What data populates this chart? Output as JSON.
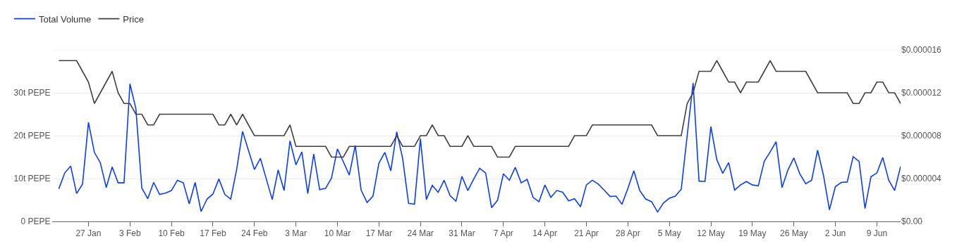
{
  "chart_data": {
    "type": "line",
    "x": [
      "--01-22",
      "--01-23",
      "--01-24",
      "--01-25",
      "--01-26",
      "--01-27",
      "--01-28",
      "--01-29",
      "--01-30",
      "--01-31",
      "--02-01",
      "--02-02",
      "--02-03",
      "--02-04",
      "--02-05",
      "--02-06",
      "--02-07",
      "--02-08",
      "--02-09",
      "--02-10",
      "--02-11",
      "--02-12",
      "--02-13",
      "--02-14",
      "--02-15",
      "--02-16",
      "--02-17",
      "--02-18",
      "--02-19",
      "--02-20",
      "--02-21",
      "--02-22",
      "--02-23",
      "--02-24",
      "--02-25",
      "--02-26",
      "--02-27",
      "--02-28",
      "--03-01",
      "--03-02",
      "--03-03",
      "--03-04",
      "--03-05",
      "--03-06",
      "--03-07",
      "--03-08",
      "--03-09",
      "--03-10",
      "--03-11",
      "--03-12",
      "--03-13",
      "--03-14",
      "--03-15",
      "--03-16",
      "--03-17",
      "--03-18",
      "--03-19",
      "--03-20",
      "--03-21",
      "--03-22",
      "--03-23",
      "--03-24",
      "--03-25",
      "--03-26",
      "--03-27",
      "--03-28",
      "--03-29",
      "--03-30",
      "--03-31",
      "--04-01",
      "--04-02",
      "--04-03",
      "--04-04",
      "--04-05",
      "--04-06",
      "--04-07",
      "--04-08",
      "--04-09",
      "--04-10",
      "--04-11",
      "--04-12",
      "--04-13",
      "--04-14",
      "--04-15",
      "--04-16",
      "--04-17",
      "--04-18",
      "--04-19",
      "--04-20",
      "--04-21",
      "--04-22",
      "--04-23",
      "--04-24",
      "--04-25",
      "--04-26",
      "--04-27",
      "--04-28",
      "--04-29",
      "--04-30",
      "--05-01",
      "--05-02",
      "--05-03",
      "--05-04",
      "--05-05",
      "--05-06",
      "--05-07",
      "--05-08",
      "--05-09",
      "--05-10",
      "--05-11",
      "--05-12",
      "--05-13",
      "--05-14",
      "--05-15",
      "--05-16",
      "--05-17",
      "--05-18",
      "--05-19",
      "--05-20",
      "--05-21",
      "--05-22",
      "--05-23",
      "--05-24",
      "--05-25",
      "--05-26",
      "--05-27",
      "--05-28",
      "--05-29",
      "--05-30",
      "--05-31",
      "--06-01",
      "--06-02",
      "--06-03",
      "--06-04",
      "--06-05",
      "--06-06",
      "--06-07",
      "--06-08",
      "--06-09",
      "--06-10",
      "--06-11",
      "--06-12",
      "--06-13"
    ],
    "series": [
      {
        "name": "Total Volume",
        "color": "#0a3cff",
        "values": [
          7.6,
          11.3,
          12.9,
          6.5,
          8.7,
          23.1,
          16.1,
          13.7,
          7.9,
          12.7,
          9.0,
          9.0,
          32.1,
          26.3,
          7.8,
          5.3,
          9.1,
          6.3,
          6.6,
          7.2,
          9.6,
          9.0,
          4.1,
          9.1,
          2.3,
          5.2,
          6.4,
          9.9,
          6.3,
          5.2,
          12.1,
          21.0,
          16.5,
          12.1,
          14.7,
          9.9,
          5.1,
          12.0,
          7.2,
          18.8,
          13.2,
          16.2,
          6.5,
          15.7,
          7.4,
          7.7,
          10.1,
          16.9,
          13.9,
          10.8,
          17.7,
          7.3,
          4.4,
          5.9,
          13.6,
          16.1,
          11.8,
          20.9,
          14.7,
          4.2,
          4.0,
          19.3,
          5.1,
          8.4,
          6.8,
          9.6,
          6.0,
          4.7,
          10.5,
          7.2,
          9.9,
          12.4,
          11.3,
          3.2,
          4.9,
          11.1,
          9.6,
          12.6,
          9.0,
          9.8,
          5.6,
          4.6,
          8.5,
          5.6,
          7.2,
          6.8,
          4.8,
          5.3,
          3.4,
          8.5,
          9.6,
          8.7,
          7.3,
          5.8,
          5.9,
          4.0,
          7.7,
          11.8,
          7.2,
          5.2,
          4.6,
          2.2,
          4.3,
          5.4,
          5.9,
          7.5,
          20.0,
          32.3,
          9.4,
          9.3,
          22.1,
          14.4,
          11.2,
          13.7,
          7.3,
          8.5,
          9.3,
          8.5,
          8.3,
          14.0,
          16.2,
          18.6,
          7.9,
          12.0,
          14.8,
          11.1,
          8.8,
          9.6,
          16.6,
          10.7,
          2.7,
          8.1,
          9.1,
          9.2,
          15.1,
          14.0,
          3.0,
          10.4,
          11.3,
          14.9,
          9.6,
          7.2,
          12.8
        ]
      },
      {
        "name": "Price",
        "color": "#404040",
        "axis": "y2",
        "values": [
          1.5e-05,
          1.5e-05,
          1.5e-05,
          1.5e-05,
          1.4e-05,
          1.3e-05,
          1.1e-05,
          1.2e-05,
          1.3e-05,
          1.4e-05,
          1.2e-05,
          1.1e-05,
          1.1e-05,
          1e-05,
          1e-05,
          9e-06,
          9e-06,
          1e-05,
          1e-05,
          1e-05,
          1e-05,
          1e-05,
          1e-05,
          1e-05,
          1e-05,
          1e-05,
          1e-05,
          9e-06,
          9e-06,
          1e-05,
          9e-06,
          1e-05,
          9e-06,
          8e-06,
          8e-06,
          8e-06,
          8e-06,
          8e-06,
          8e-06,
          9e-06,
          7e-06,
          7e-06,
          7e-06,
          7e-06,
          7e-06,
          7e-06,
          6e-06,
          6e-06,
          6e-06,
          7e-06,
          7e-06,
          7e-06,
          7e-06,
          7e-06,
          7e-06,
          7e-06,
          7e-06,
          8e-06,
          7e-06,
          7e-06,
          7e-06,
          8e-06,
          8e-06,
          9e-06,
          8e-06,
          8e-06,
          7e-06,
          7e-06,
          7e-06,
          8e-06,
          7e-06,
          7e-06,
          7e-06,
          7e-06,
          6e-06,
          6e-06,
          6e-06,
          7e-06,
          7e-06,
          7e-06,
          7e-06,
          7e-06,
          7e-06,
          7e-06,
          7e-06,
          7e-06,
          7e-06,
          8e-06,
          8e-06,
          8e-06,
          9e-06,
          9e-06,
          9e-06,
          9e-06,
          9e-06,
          9e-06,
          9e-06,
          9e-06,
          9e-06,
          9e-06,
          9e-06,
          8e-06,
          8e-06,
          8e-06,
          8e-06,
          8e-06,
          1.1e-05,
          1.2e-05,
          1.4e-05,
          1.4e-05,
          1.4e-05,
          1.5e-05,
          1.4e-05,
          1.3e-05,
          1.3e-05,
          1.2e-05,
          1.3e-05,
          1.3e-05,
          1.3e-05,
          1.4e-05,
          1.5e-05,
          1.4e-05,
          1.4e-05,
          1.4e-05,
          1.4e-05,
          1.4e-05,
          1.4e-05,
          1.3e-05,
          1.2e-05,
          1.2e-05,
          1.2e-05,
          1.2e-05,
          1.2e-05,
          1.2e-05,
          1.1e-05,
          1.1e-05,
          1.2e-05,
          1.2e-05,
          1.3e-05,
          1.3e-05,
          1.2e-05,
          1.2e-05,
          1.1e-05
        ]
      }
    ],
    "xlim": [
      "--01-21",
      "--06-13"
    ],
    "xticks": [
      {
        "value": "--01-27",
        "label": "27 Jan"
      },
      {
        "value": "--02-03",
        "label": "3 Feb"
      },
      {
        "value": "--02-10",
        "label": "10 Feb"
      },
      {
        "value": "--02-17",
        "label": "17 Feb"
      },
      {
        "value": "--02-24",
        "label": "24 Feb"
      },
      {
        "value": "--03-03",
        "label": "3 Mar"
      },
      {
        "value": "--03-10",
        "label": "10 Mar"
      },
      {
        "value": "--03-17",
        "label": "17 Mar"
      },
      {
        "value": "--03-24",
        "label": "24 Mar"
      },
      {
        "value": "--03-31",
        "label": "31 Mar"
      },
      {
        "value": "--04-07",
        "label": "7 Apr"
      },
      {
        "value": "--04-14",
        "label": "14 Apr"
      },
      {
        "value": "--04-21",
        "label": "21 Apr"
      },
      {
        "value": "--04-28",
        "label": "28 Apr"
      },
      {
        "value": "--05-05",
        "label": "5 May"
      },
      {
        "value": "--05-12",
        "label": "12 May"
      },
      {
        "value": "--05-19",
        "label": "19 May"
      },
      {
        "value": "--05-26",
        "label": "26 May"
      },
      {
        "value": "--06-02",
        "label": "2 Jun"
      },
      {
        "value": "--06-09",
        "label": "9 Jun"
      }
    ],
    "ylim": [
      0,
      40
    ],
    "yticks": [
      {
        "value": 0,
        "label": "0 PEPE"
      },
      {
        "value": 10,
        "label": "10t PEPE"
      },
      {
        "value": 20,
        "label": "20t PEPE"
      },
      {
        "value": 30,
        "label": "30t PEPE"
      },
      {
        "value": 40,
        "label": null
      }
    ],
    "y2lim": [
      0,
      1.6e-05
    ],
    "y2ticks": [
      {
        "value": 0,
        "label": "$0.00"
      },
      {
        "value": 4e-06,
        "label": "$0.000004"
      },
      {
        "value": 8e-06,
        "label": "$0.000008"
      },
      {
        "value": 1.2e-05,
        "label": "$0.000012"
      },
      {
        "value": 1.6e-05,
        "label": "$0.000016"
      }
    ],
    "grid": "y",
    "legend": "top left",
    "marker": "none",
    "line_style": "solid"
  }
}
